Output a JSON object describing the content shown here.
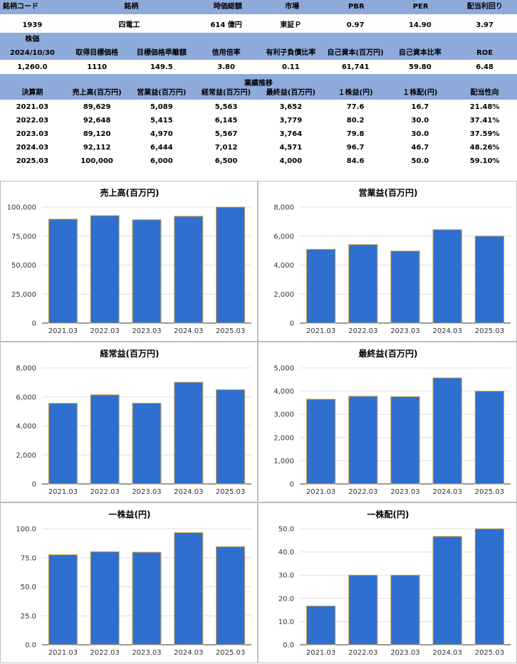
{
  "summary": {
    "headers": [
      "銘柄コード",
      "銘柄",
      "時価総額",
      "市場",
      "PBR",
      "PER",
      "配当利回り"
    ],
    "values": [
      "1939",
      "四電工",
      "614 億円",
      "東証Ｐ",
      "0.97",
      "14.90",
      "3.97"
    ]
  },
  "valuation": {
    "headers": [
      "株価",
      "取得目標価格",
      "目標価格乖離額",
      "信用倍率",
      "有利子負債比率",
      "自己資本(百万円)",
      "自己資本比率",
      "ROE"
    ],
    "date": "2024/10/30",
    "values": [
      "1,260.0",
      "1110",
      "149.5",
      "3.80",
      "0.11",
      "61,741",
      "59.80",
      "6.48"
    ]
  },
  "performance": {
    "section_title": "業績推移",
    "headers": [
      "決算期",
      "売上高(百万円)",
      "営業益(百万円)",
      "経常益(百万円)",
      "最終益(百万円)",
      "１株益(円)",
      "１株配(円)",
      "配当性向"
    ],
    "rows": [
      [
        "2021.03",
        "89,629",
        "5,089",
        "5,563",
        "3,652",
        "77.6",
        "16.7",
        "21.48%"
      ],
      [
        "2022.03",
        "92,648",
        "5,415",
        "6,145",
        "3,779",
        "80.2",
        "30.0",
        "37.41%"
      ],
      [
        "2023.03",
        "89,120",
        "4,970",
        "5,567",
        "3,764",
        "79.8",
        "30.0",
        "37.59%"
      ],
      [
        "2024.03",
        "92,112",
        "6,444",
        "7,012",
        "4,571",
        "96.7",
        "46.7",
        "48.26%"
      ],
      [
        "2025.03",
        "100,000",
        "6,000",
        "6,500",
        "4,000",
        "84.6",
        "50.0",
        "59.10%"
      ]
    ]
  },
  "colors": {
    "bar": "#2f6fcf",
    "bar_edge": "#c8a24a",
    "header": "#8eaadb",
    "grid": "#e0e0e0"
  },
  "chart_data": [
    {
      "type": "bar",
      "title": "売上高(百万円)",
      "categories": [
        "2021.03",
        "2022.03",
        "2023.03",
        "2024.03",
        "2025.03"
      ],
      "values": [
        89629,
        92648,
        89120,
        92112,
        100000
      ],
      "ylim": [
        0,
        100000
      ],
      "yticks": [
        "0",
        "25,000",
        "50,000",
        "75,000",
        "100,000"
      ],
      "xlabel": "",
      "ylabel": ""
    },
    {
      "type": "bar",
      "title": "営業益(百万円)",
      "categories": [
        "2021.03",
        "2022.03",
        "2023.03",
        "2024.03",
        "2025.03"
      ],
      "values": [
        5089,
        5415,
        4970,
        6444,
        6000
      ],
      "ylim": [
        0,
        8000
      ],
      "yticks": [
        "0",
        "2,000",
        "4,000",
        "6,000",
        "8,000"
      ],
      "xlabel": "",
      "ylabel": ""
    },
    {
      "type": "bar",
      "title": "経常益(百万円)",
      "categories": [
        "2021.03",
        "2022.03",
        "2023.03",
        "2024.03",
        "2025.03"
      ],
      "values": [
        5563,
        6145,
        5567,
        7012,
        6500
      ],
      "ylim": [
        0,
        8000
      ],
      "yticks": [
        "0",
        "2,000",
        "4,000",
        "6,000",
        "8,000"
      ],
      "xlabel": "",
      "ylabel": ""
    },
    {
      "type": "bar",
      "title": "最終益(百万円)",
      "categories": [
        "2021.03",
        "2022.03",
        "2023.03",
        "2024.03",
        "2025.03"
      ],
      "values": [
        3652,
        3779,
        3764,
        4571,
        4000
      ],
      "ylim": [
        0,
        5000
      ],
      "yticks": [
        "0",
        "1,000",
        "2,000",
        "3,000",
        "4,000",
        "5,000"
      ],
      "xlabel": "",
      "ylabel": ""
    },
    {
      "type": "bar",
      "title": "一株益(円)",
      "categories": [
        "2021.03",
        "2022.03",
        "2023.03",
        "2024.03",
        "2025.03"
      ],
      "values": [
        77.6,
        80.2,
        79.8,
        96.7,
        84.6
      ],
      "ylim": [
        0,
        100
      ],
      "yticks": [
        "0.0",
        "25.0",
        "50.0",
        "75.0",
        "100.0"
      ],
      "xlabel": "",
      "ylabel": ""
    },
    {
      "type": "bar",
      "title": "一株配(円)",
      "categories": [
        "2021.03",
        "2022.03",
        "2023.03",
        "2024.03",
        "2025.03"
      ],
      "values": [
        16.7,
        30.0,
        30.0,
        46.7,
        50.0
      ],
      "ylim": [
        0,
        50
      ],
      "yticks": [
        "0.0",
        "10.0",
        "20.0",
        "30.0",
        "40.0",
        "50.0"
      ],
      "xlabel": "",
      "ylabel": ""
    }
  ]
}
